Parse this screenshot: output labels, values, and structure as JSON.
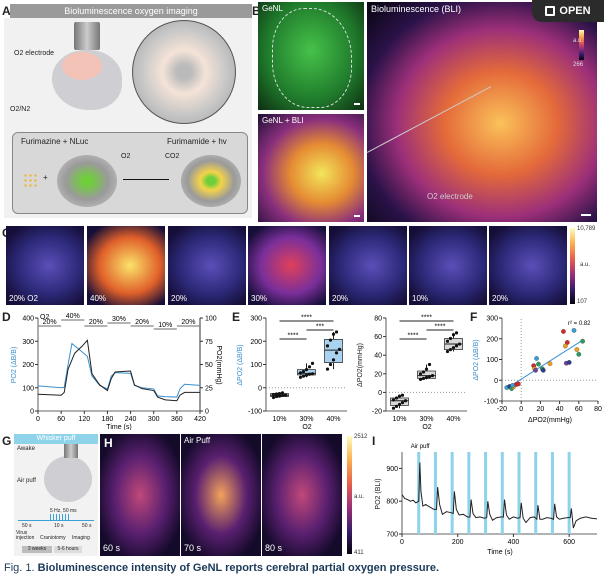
{
  "panel_labels": [
    "A",
    "B",
    "C",
    "D",
    "E",
    "F",
    "G",
    "H",
    "I"
  ],
  "panelA": {
    "title": "Bioluminescence oxygen imaging",
    "electrode_label": "O2 electrode",
    "gas_label": "O2/N2",
    "reaction_left": "Furimazine + NLuc",
    "reaction_right": "Furimamide + hv",
    "reactant": "O2",
    "product": "CO2"
  },
  "panelB": {
    "genl_label": "GeNL",
    "overlay_label": "GeNL + BLI",
    "bli_label": "Bioluminescence (BLI)",
    "electrode_label": "O2 electrode",
    "colorbar": {
      "max": "",
      "unit": "a.u.",
      "min": "266"
    }
  },
  "open_button": {
    "label": "OPEN",
    "icon": "external-link-icon"
  },
  "panelC": {
    "frames": [
      "20% O2",
      "40%",
      "20%",
      "30%",
      "20%",
      "10%",
      "20%"
    ],
    "frame_levels": [
      0.15,
      0.95,
      0.2,
      0.55,
      0.15,
      0.05,
      0.3
    ],
    "colorbar": {
      "max": "10,789",
      "unit": "a.u.",
      "min": "107"
    }
  },
  "panelE_sig": {
    "left": [
      "****",
      "***",
      "****"
    ],
    "right": [
      "****",
      "****",
      "****"
    ]
  },
  "panelF_r2": "r² = 0.82",
  "panelG": {
    "title": "Whisker puff",
    "awake": "Awake",
    "air_puff": "Air puff",
    "stim": "5 Hz, 50 ms",
    "durations": [
      "50 s",
      "10 s",
      "50 s"
    ],
    "timeline": [
      "Virus injection",
      "Craniotomy",
      "Imaging"
    ],
    "intervals": [
      "3 weeks",
      "5-6 hours"
    ],
    "accent": "#8fd3ea"
  },
  "panelH": {
    "frames": [
      "60 s",
      "70 s",
      "80 s"
    ],
    "header": "Air Puff",
    "colorbar": {
      "max": "2512",
      "unit": "a.u.",
      "min": "411"
    }
  },
  "caption": {
    "fig": "Fig. 1.",
    "text": "Bioluminescence intensity of GeNL reports cerebral partial oxygen pressure."
  },
  "chart_data": [
    {
      "id": "D",
      "type": "line",
      "xlabel": "Time (s)",
      "ylabel": "PO2 (ΔB/B)",
      "ylabel_right": "PO2(mmHg)",
      "xlim": [
        0,
        420
      ],
      "xticks": [
        0,
        60,
        120,
        180,
        240,
        300,
        360,
        420
      ],
      "ylim": [
        0,
        400
      ],
      "yticks": [
        0,
        100,
        200,
        300,
        400
      ],
      "ylim_right": [
        0,
        100
      ],
      "yticks_right": [
        0,
        25,
        50,
        75,
        100
      ],
      "o2_label": "O2",
      "o2_steps": [
        {
          "from": 0,
          "to": 60,
          "label": "20%",
          "level": 20
        },
        {
          "from": 60,
          "to": 120,
          "label": "40%",
          "level": 40
        },
        {
          "from": 120,
          "to": 180,
          "label": "20%",
          "level": 20
        },
        {
          "from": 180,
          "to": 240,
          "label": "30%",
          "level": 30
        },
        {
          "from": 240,
          "to": 300,
          "label": "20%",
          "level": 20
        },
        {
          "from": 300,
          "to": 360,
          "label": "10%",
          "level": 10
        },
        {
          "from": 360,
          "to": 420,
          "label": "20%",
          "level": 20
        }
      ],
      "series": [
        {
          "axis": "left",
          "color": "#3a8fd0",
          "x": [
            0,
            60,
            68,
            78,
            88,
            110,
            128,
            140,
            160,
            180,
            190,
            200,
            240,
            250,
            270,
            300,
            310,
            330,
            360,
            368,
            380,
            420
          ],
          "y": [
            108,
            100,
            102,
            200,
            290,
            260,
            235,
            150,
            110,
            95,
            150,
            165,
            162,
            110,
            100,
            95,
            65,
            62,
            60,
            95,
            115,
            110
          ]
        },
        {
          "axis": "right",
          "color": "#222222",
          "x": [
            0,
            60,
            68,
            78,
            95,
            115,
            128,
            140,
            160,
            180,
            190,
            200,
            240,
            250,
            270,
            300,
            310,
            330,
            360,
            368,
            380,
            420
          ],
          "y": [
            18,
            17,
            20,
            45,
            62,
            70,
            76,
            40,
            28,
            22,
            35,
            42,
            43,
            28,
            24,
            22,
            15,
            12,
            11,
            17,
            20,
            20
          ]
        }
      ]
    },
    {
      "id": "E-left",
      "type": "box",
      "ylabel": "ΔPO2 (ΔB/B)",
      "xlabel": "O2",
      "categories": [
        "10%",
        "30%",
        "40%"
      ],
      "ylim": [
        -100,
        300
      ],
      "yticks": [
        -100,
        0,
        100,
        200,
        300
      ],
      "box_color": "#a9d3ef",
      "boxes": [
        {
          "min": -42,
          "q1": -38,
          "median": -32,
          "q3": -25,
          "max": -20,
          "points": [
            -42,
            -38,
            -36,
            -33,
            -31,
            -29,
            -27,
            -25,
            -22
          ]
        },
        {
          "min": 45,
          "q1": 55,
          "median": 62,
          "q3": 78,
          "max": 105,
          "points": [
            45,
            50,
            54,
            58,
            60,
            64,
            70,
            78,
            90,
            105
          ]
        },
        {
          "min": 80,
          "q1": 108,
          "median": 162,
          "q3": 208,
          "max": 240,
          "points": [
            80,
            100,
            120,
            150,
            165,
            180,
            205,
            230,
            240
          ]
        }
      ]
    },
    {
      "id": "E-right",
      "type": "box",
      "ylabel": "ΔPO2(mmHg)",
      "xlabel": "O2",
      "categories": [
        "10%",
        "30%",
        "40%"
      ],
      "ylim": [
        -20,
        80
      ],
      "yticks": [
        -20,
        0,
        20,
        40,
        60,
        80
      ],
      "box_color": "#d9d9d9",
      "boxes": [
        {
          "min": -17,
          "q1": -14,
          "median": -9,
          "q3": -6,
          "max": -3,
          "points": [
            -17,
            -15,
            -13,
            -11,
            -9,
            -8,
            -6,
            -4,
            -3
          ]
        },
        {
          "min": 14,
          "q1": 15,
          "median": 18,
          "q3": 23,
          "max": 30,
          "points": [
            14,
            15,
            16,
            17,
            18,
            20,
            22,
            25,
            30
          ]
        },
        {
          "min": 44,
          "q1": 46,
          "median": 52,
          "q3": 58,
          "max": 64,
          "points": [
            44,
            46,
            48,
            50,
            52,
            55,
            58,
            62,
            64
          ]
        }
      ]
    },
    {
      "id": "F",
      "type": "scatter",
      "xlabel": "ΔPO2(mmHg)",
      "ylabel": "ΔPO2 (ΔB/B)",
      "xlim": [
        -20,
        80
      ],
      "xticks": [
        -20,
        0,
        20,
        40,
        60,
        80
      ],
      "ylim": [
        -100,
        300
      ],
      "yticks": [
        -100,
        0,
        100,
        200,
        300
      ],
      "fit": {
        "x": [
          -12,
          63
        ],
        "y": [
          -30,
          190
        ],
        "color": "#3a8fd0"
      },
      "points": [
        {
          "x": -15,
          "y": -35,
          "c": "#3aa0d8"
        },
        {
          "x": -12,
          "y": -30,
          "c": "#2a3d8f"
        },
        {
          "x": -10,
          "y": -40,
          "c": "#2a9d5c"
        },
        {
          "x": -8,
          "y": -32,
          "c": "#f0a020"
        },
        {
          "x": -5,
          "y": -20,
          "c": "#d62828"
        },
        {
          "x": -3,
          "y": -18,
          "c": "#d62828"
        },
        {
          "x": -9,
          "y": -25,
          "c": "#3aa0d8"
        },
        {
          "x": 13,
          "y": 70,
          "c": "#d62828"
        },
        {
          "x": 14,
          "y": 55,
          "c": "#f0a020"
        },
        {
          "x": 15,
          "y": 48,
          "c": "#7a3d9c"
        },
        {
          "x": 16,
          "y": 105,
          "c": "#3aa0d8"
        },
        {
          "x": 18,
          "y": 78,
          "c": "#2a9d5c"
        },
        {
          "x": 22,
          "y": 55,
          "c": "#2a9d5c"
        },
        {
          "x": 23,
          "y": 48,
          "c": "#2a3d8f"
        },
        {
          "x": 30,
          "y": 80,
          "c": "#f0a020"
        },
        {
          "x": 44,
          "y": 235,
          "c": "#d62828"
        },
        {
          "x": 48,
          "y": 182,
          "c": "#d62828"
        },
        {
          "x": 46,
          "y": 165,
          "c": "#f0a020"
        },
        {
          "x": 47,
          "y": 82,
          "c": "#7a3d9c"
        },
        {
          "x": 50,
          "y": 86,
          "c": "#2a3d8f"
        },
        {
          "x": 55,
          "y": 240,
          "c": "#3aa0d8"
        },
        {
          "x": 58,
          "y": 148,
          "c": "#f0a020"
        },
        {
          "x": 60,
          "y": 125,
          "c": "#2a9d5c"
        },
        {
          "x": 64,
          "y": 188,
          "c": "#2a9d5c"
        }
      ]
    },
    {
      "id": "I",
      "type": "line",
      "xlabel": "Time (s)",
      "ylabel": "PO2 (BLI)",
      "xlim": [
        0,
        700
      ],
      "xticks": [
        0,
        200,
        400,
        600
      ],
      "ylim": [
        700,
        950
      ],
      "yticks": [
        700,
        800,
        900
      ],
      "annotation": "Air puff",
      "puff_times": [
        60,
        120,
        180,
        240,
        300,
        360,
        420,
        480,
        540,
        600
      ],
      "puff_color": "#8fd3ea",
      "series": [
        {
          "color": "#222222",
          "x": [
            0,
            10,
            20,
            30,
            40,
            50,
            60,
            64,
            68,
            75,
            85,
            100,
            115,
            124,
            128,
            135,
            145,
            160,
            175,
            184,
            188,
            195,
            205,
            220,
            235,
            244,
            248,
            255,
            265,
            280,
            295,
            304,
            308,
            315,
            325,
            340,
            355,
            364,
            368,
            375,
            385,
            400,
            415,
            424,
            428,
            435,
            445,
            460,
            475,
            484,
            488,
            495,
            505,
            520,
            535,
            544,
            548,
            555,
            565,
            580,
            595,
            604,
            608,
            615,
            625,
            640,
            660,
            680,
            700
          ],
          "y": [
            820,
            808,
            805,
            800,
            803,
            795,
            800,
            918,
            830,
            785,
            790,
            782,
            775,
            775,
            843,
            790,
            760,
            768,
            765,
            763,
            830,
            775,
            758,
            760,
            752,
            752,
            805,
            762,
            750,
            752,
            748,
            750,
            800,
            760,
            742,
            750,
            752,
            752,
            805,
            758,
            745,
            752,
            748,
            750,
            795,
            748,
            735,
            750,
            752,
            745,
            788,
            745,
            745,
            750,
            748,
            745,
            792,
            752,
            745,
            748,
            750,
            750,
            778,
            718,
            740,
            748,
            752,
            748,
            746
          ]
        }
      ]
    }
  ]
}
